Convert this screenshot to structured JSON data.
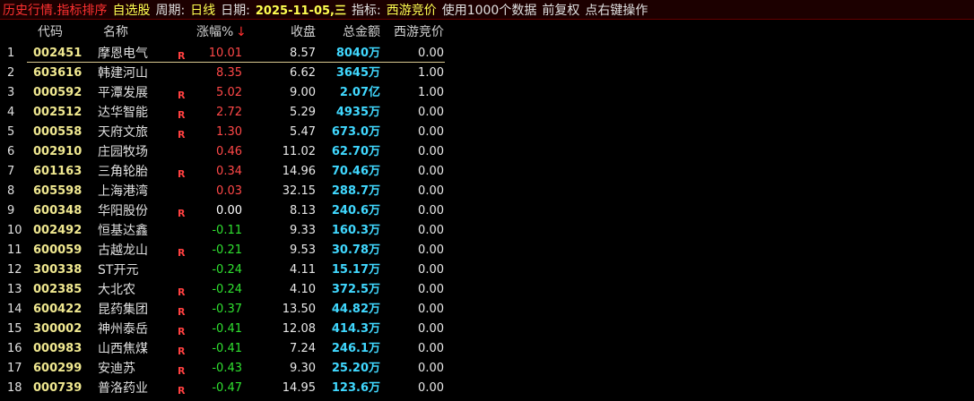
{
  "toolbar": {
    "title": "历史行情.指标排序",
    "board": "自选股",
    "period_label": "周期:",
    "period": "日线",
    "date_label": "日期:",
    "date": "2025-11-05,三",
    "indicator_label": "指标:",
    "indicator": "西游竞价",
    "data_count": "使用1000个数据",
    "adjust": "前复权",
    "hint": "点右键操作"
  },
  "table": {
    "headers": {
      "code": "代码",
      "name": "名称",
      "change": "涨幅%",
      "sort_arrow": "↓",
      "close": "收盘",
      "amount": "总金额",
      "indicator": "西游竞价"
    },
    "rows": [
      {
        "no": "1",
        "code": "002451",
        "name": "摩恩电气",
        "flag": "R",
        "change": "10.01",
        "close": "8.57",
        "amount": "8040万",
        "indicator": "0.00"
      },
      {
        "no": "2",
        "code": "603616",
        "name": "韩建河山",
        "change": "8.35",
        "close": "6.62",
        "amount": "3645万",
        "indicator": "1.00"
      },
      {
        "no": "3",
        "code": "000592",
        "name": "平潭发展",
        "flag": "R",
        "change": "5.02",
        "close": "9.00",
        "amount": "2.07亿",
        "indicator": "1.00"
      },
      {
        "no": "4",
        "code": "002512",
        "name": "达华智能",
        "flag": "R",
        "change": "2.72",
        "close": "5.29",
        "amount": "4935万",
        "indicator": "0.00"
      },
      {
        "no": "5",
        "code": "000558",
        "name": "天府文旅",
        "flag": "R",
        "change": "1.30",
        "close": "5.47",
        "amount": "673.0万",
        "indicator": "0.00"
      },
      {
        "no": "6",
        "code": "002910",
        "name": "庄园牧场",
        "change": "0.46",
        "close": "11.02",
        "amount": "62.70万",
        "indicator": "0.00"
      },
      {
        "no": "7",
        "code": "601163",
        "name": "三角轮胎",
        "flag": "R",
        "change": "0.34",
        "close": "14.96",
        "amount": "70.46万",
        "indicator": "0.00"
      },
      {
        "no": "8",
        "code": "605598",
        "name": "上海港湾",
        "change": "0.03",
        "close": "32.15",
        "amount": "288.7万",
        "indicator": "0.00"
      },
      {
        "no": "9",
        "code": "600348",
        "name": "华阳股份",
        "flag": "R",
        "change": "0.00",
        "close": "8.13",
        "amount": "240.6万",
        "indicator": "0.00"
      },
      {
        "no": "10",
        "code": "002492",
        "name": "恒基达鑫",
        "change": "-0.11",
        "close": "9.33",
        "amount": "160.3万",
        "indicator": "0.00"
      },
      {
        "no": "11",
        "code": "600059",
        "name": "古越龙山",
        "flag": "R",
        "change": "-0.21",
        "close": "9.53",
        "amount": "30.78万",
        "indicator": "0.00"
      },
      {
        "no": "12",
        "code": "300338",
        "name": "ST开元",
        "change": "-0.24",
        "close": "4.11",
        "amount": "15.17万",
        "indicator": "0.00"
      },
      {
        "no": "13",
        "code": "002385",
        "name": "大北农",
        "flag": "R",
        "change": "-0.24",
        "close": "4.10",
        "amount": "372.5万",
        "indicator": "0.00"
      },
      {
        "no": "14",
        "code": "600422",
        "name": "昆药集团",
        "flag": "R",
        "change": "-0.37",
        "close": "13.50",
        "amount": "44.82万",
        "indicator": "0.00"
      },
      {
        "no": "15",
        "code": "300002",
        "name": "神州泰岳",
        "flag": "R",
        "change": "-0.41",
        "close": "12.08",
        "amount": "414.3万",
        "indicator": "0.00"
      },
      {
        "no": "16",
        "code": "000983",
        "name": "山西焦煤",
        "flag": "R",
        "change": "-0.41",
        "close": "7.24",
        "amount": "246.1万",
        "indicator": "0.00"
      },
      {
        "no": "17",
        "code": "600299",
        "name": "安迪苏",
        "flag": "R",
        "change": "-0.43",
        "close": "9.30",
        "amount": "25.20万",
        "indicator": "0.00"
      },
      {
        "no": "18",
        "code": "000739",
        "name": "普洛药业",
        "flag": "R",
        "change": "-0.47",
        "close": "14.95",
        "amount": "123.6万",
        "indicator": "0.00"
      }
    ]
  }
}
